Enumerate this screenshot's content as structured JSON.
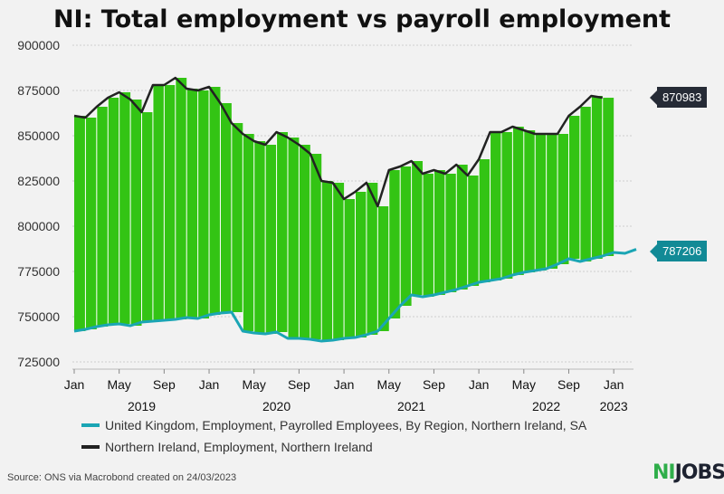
{
  "title": "NI: Total employment vs payroll employment",
  "colors": {
    "fill": "#33c414",
    "stripe": "#ffffff",
    "payroll": "#1aa5b4",
    "employment": "#222222",
    "employment_label_bg": "#262b36",
    "payroll_label_bg": "#128a96",
    "background": "#f2f2f2"
  },
  "end_labels": {
    "employment": "870983",
    "payroll": "787206"
  },
  "legend": [
    {
      "label": "United Kingdom, Employment, Payrolled Employees, By Region, Northern Ireland, SA",
      "color": "#1aa5b4"
    },
    {
      "label": "Northern Ireland, Employment, Northern Ireland",
      "color": "#222222"
    }
  ],
  "source": "Source: ONS via Macrobond created on 24/03/2023",
  "logo": {
    "ni": "NI",
    "jobs": "JOBS"
  },
  "chart_data": {
    "type": "line",
    "ylim": [
      725000,
      900000
    ],
    "yticks": [
      "725000",
      "750000",
      "775000",
      "800000",
      "825000",
      "850000",
      "875000",
      "900000"
    ],
    "xticks_month": [
      "Jan",
      "May",
      "Sep",
      "Jan",
      "May",
      "Sep",
      "Jan",
      "May",
      "Sep",
      "Jan",
      "May",
      "Sep",
      "Jan"
    ],
    "xticks_year": [
      "2019",
      "2020",
      "2021",
      "2022",
      "2023"
    ],
    "x_start": "2019-01",
    "series": [
      {
        "name": "Northern Ireland, Employment, Northern Ireland",
        "values": [
          861000,
          860000,
          866000,
          871000,
          874000,
          870000,
          863000,
          878000,
          878000,
          882000,
          876000,
          875000,
          877000,
          868000,
          857000,
          851000,
          847000,
          845000,
          852000,
          849000,
          845000,
          840000,
          825000,
          824000,
          815000,
          819000,
          824000,
          811000,
          831000,
          833000,
          836000,
          829000,
          831000,
          829000,
          834000,
          828000,
          837000,
          852000,
          852000,
          855000,
          853000,
          851000,
          851000,
          851000,
          861000,
          866000,
          872000,
          870983
        ]
      },
      {
        "name": "United Kingdom, Employment, Payrolled Employees, By Region, Northern Ireland, SA",
        "values": [
          742000,
          743000,
          744500,
          745500,
          746000,
          745000,
          747000,
          747500,
          748000,
          748500,
          749500,
          749000,
          751000,
          752000,
          752500,
          742000,
          741000,
          740500,
          741500,
          738000,
          738000,
          737500,
          736500,
          737000,
          738000,
          738500,
          740000,
          742000,
          749000,
          756000,
          762000,
          761000,
          762000,
          763500,
          765000,
          767000,
          769000,
          770000,
          771000,
          773000,
          774500,
          775500,
          776500,
          779000,
          782000,
          780500,
          782000,
          783500,
          785500,
          785000,
          787206
        ]
      }
    ]
  }
}
